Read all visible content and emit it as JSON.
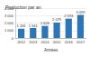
{
  "chart_data": {
    "type": "bar",
    "title": "Production par an",
    "x_label": "Années",
    "categories": [
      "2012",
      "2013",
      "2014",
      "2015",
      "2016",
      "2017"
    ],
    "values": [
      1261,
      1341,
      1626,
      2079,
      2593,
      3099
    ],
    "value_labels": [
      "1 261",
      "1 341",
      "1 626",
      "2 079",
      "2 593",
      "3 099"
    ],
    "color": "#2e75b6",
    "ylim": [
      0,
      4000
    ],
    "yticks": [
      0,
      {
        "value": 1000,
        "label": "1 000"
      },
      {
        "value": 2000,
        "label": "2 000"
      },
      {
        "value": 3000,
        "label": "3 000"
      },
      {
        "value": 4000,
        "label": "4 000"
      }
    ],
    "grid": true,
    "data_labels": true
  }
}
